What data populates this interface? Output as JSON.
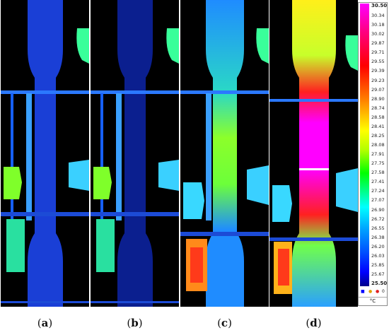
{
  "panels": [
    {
      "id": "a",
      "caption": "a"
    },
    {
      "id": "b",
      "caption": "b"
    },
    {
      "id": "c",
      "caption": "c"
    },
    {
      "id": "d",
      "caption": "d"
    }
  ],
  "scale": {
    "max": "30.50",
    "min": "25.50",
    "ticks": [
      "30.34",
      "30.18",
      "30.02",
      "29.87",
      "29.71",
      "29.55",
      "29.39",
      "29.23",
      "29.07",
      "28.90",
      "28.74",
      "28.58",
      "28.41",
      "28.25",
      "28.08",
      "27.91",
      "27.75",
      "27.58",
      "27.41",
      "27.24",
      "27.07",
      "26.90",
      "26.72",
      "26.55",
      "26.38",
      "26.20",
      "26.03",
      "25.85",
      "25.67"
    ],
    "unit": "°C",
    "legend_right": "0"
  },
  "colors": {
    "background": "#000000",
    "cold": "#0000ff",
    "hot": "#ff00ff"
  }
}
